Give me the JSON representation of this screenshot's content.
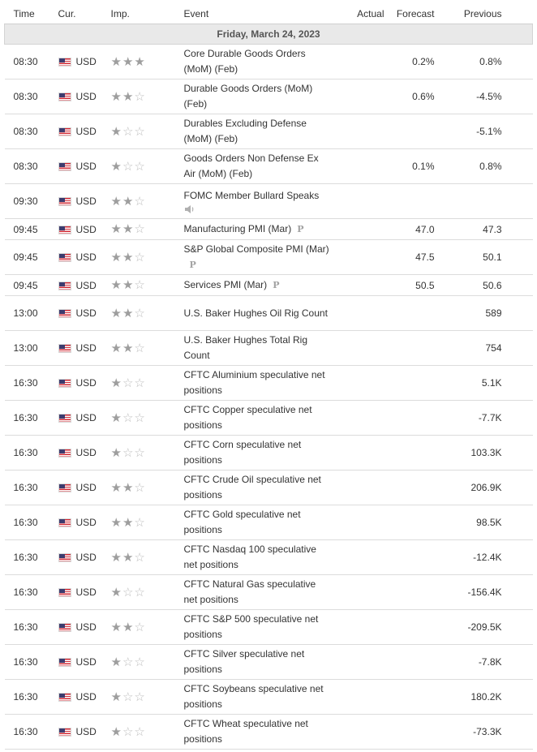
{
  "header": {
    "time": "Time",
    "currency": "Cur.",
    "importance": "Imp.",
    "event": "Event",
    "actual": "Actual",
    "forecast": "Forecast",
    "previous": "Previous"
  },
  "date_label": "Friday, March 24, 2023",
  "colors": {
    "header_divider": "#cfcfcf",
    "date_row_bg": "#e9e9e9",
    "star_filled": "#9e9e9e",
    "star_empty": "#bdbdbd"
  },
  "events": [
    {
      "time": "08:30",
      "cur": "USD",
      "imp": 3,
      "event": "Core Durable Goods Orders (MoM) (Feb)",
      "actual": "",
      "forecast": "0.2%",
      "previous": "0.8%"
    },
    {
      "time": "08:30",
      "cur": "USD",
      "imp": 2,
      "event": "Durable Goods Orders (MoM) (Feb)",
      "actual": "",
      "forecast": "0.6%",
      "previous": "-4.5%"
    },
    {
      "time": "08:30",
      "cur": "USD",
      "imp": 1,
      "event": "Durables Excluding Defense (MoM) (Feb)",
      "actual": "",
      "forecast": "",
      "previous": "-5.1%"
    },
    {
      "time": "08:30",
      "cur": "USD",
      "imp": 1,
      "event": "Goods Orders Non Defense Ex Air (MoM) (Feb)",
      "actual": "",
      "forecast": "0.1%",
      "previous": "0.8%"
    },
    {
      "time": "09:30",
      "cur": "USD",
      "imp": 2,
      "event": "FOMC Member Bullard Speaks",
      "icon": "speaker-icon",
      "actual": "",
      "forecast": "",
      "previous": ""
    },
    {
      "time": "09:45",
      "cur": "USD",
      "imp": 2,
      "event": "Manufacturing PMI (Mar)",
      "badge": "P",
      "actual": "",
      "forecast": "47.0",
      "previous": "47.3"
    },
    {
      "time": "09:45",
      "cur": "USD",
      "imp": 2,
      "event": "S&P Global Composite PMI (Mar)",
      "badge": "P",
      "actual": "",
      "forecast": "47.5",
      "previous": "50.1"
    },
    {
      "time": "09:45",
      "cur": "USD",
      "imp": 2,
      "event": "Services PMI (Mar)",
      "badge": "P",
      "actual": "",
      "forecast": "50.5",
      "previous": "50.6"
    },
    {
      "time": "13:00",
      "cur": "USD",
      "imp": 2,
      "event": "U.S. Baker Hughes Oil Rig Count",
      "actual": "",
      "forecast": "",
      "previous": "589"
    },
    {
      "time": "13:00",
      "cur": "USD",
      "imp": 2,
      "event": "U.S. Baker Hughes Total Rig Count",
      "actual": "",
      "forecast": "",
      "previous": "754"
    },
    {
      "time": "16:30",
      "cur": "USD",
      "imp": 1,
      "event": "CFTC Aluminium speculative net positions",
      "actual": "",
      "forecast": "",
      "previous": "5.1K"
    },
    {
      "time": "16:30",
      "cur": "USD",
      "imp": 1,
      "event": "CFTC Copper speculative net positions",
      "actual": "",
      "forecast": "",
      "previous": "-7.7K"
    },
    {
      "time": "16:30",
      "cur": "USD",
      "imp": 1,
      "event": "CFTC Corn speculative net positions",
      "actual": "",
      "forecast": "",
      "previous": "103.3K"
    },
    {
      "time": "16:30",
      "cur": "USD",
      "imp": 2,
      "event": "CFTC Crude Oil speculative net positions",
      "actual": "",
      "forecast": "",
      "previous": "206.9K"
    },
    {
      "time": "16:30",
      "cur": "USD",
      "imp": 2,
      "event": "CFTC Gold speculative net positions",
      "actual": "",
      "forecast": "",
      "previous": "98.5K"
    },
    {
      "time": "16:30",
      "cur": "USD",
      "imp": 2,
      "event": "CFTC Nasdaq 100 speculative net positions",
      "actual": "",
      "forecast": "",
      "previous": "-12.4K"
    },
    {
      "time": "16:30",
      "cur": "USD",
      "imp": 1,
      "event": "CFTC Natural Gas speculative net positions",
      "actual": "",
      "forecast": "",
      "previous": "-156.4K"
    },
    {
      "time": "16:30",
      "cur": "USD",
      "imp": 2,
      "event": "CFTC S&P 500 speculative net positions",
      "actual": "",
      "forecast": "",
      "previous": "-209.5K"
    },
    {
      "time": "16:30",
      "cur": "USD",
      "imp": 1,
      "event": "CFTC Silver speculative net positions",
      "actual": "",
      "forecast": "",
      "previous": "-7.8K"
    },
    {
      "time": "16:30",
      "cur": "USD",
      "imp": 1,
      "event": "CFTC Soybeans speculative net positions",
      "actual": "",
      "forecast": "",
      "previous": "180.2K"
    },
    {
      "time": "16:30",
      "cur": "USD",
      "imp": 1,
      "event": "CFTC Wheat speculative net positions",
      "actual": "",
      "forecast": "",
      "previous": "-73.3K"
    }
  ]
}
